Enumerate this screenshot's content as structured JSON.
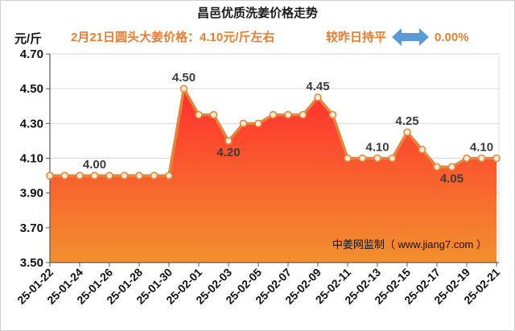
{
  "chart_data": {
    "type": "area",
    "title": "昌邑优质洗姜价格走势",
    "subtitle": "2月21日圆头大姜价格：4.10元/斤左右",
    "change": {
      "text": "较昨日持平",
      "icon": "double-arrow-icon",
      "percent": "0.00%"
    },
    "ylabel": "元/斤",
    "ylim": [
      3.5,
      4.7
    ],
    "yticks": [
      "4.70",
      "4.50",
      "4.30",
      "4.10",
      "3.90",
      "3.70",
      "3.50"
    ],
    "xticks": [
      "25-01-22",
      "25-01-24",
      "25-01-26",
      "25-01-28",
      "25-01-30",
      "25-02-01",
      "25-02-03",
      "25-02-05",
      "25-02-07",
      "25-02-09",
      "25-02-11",
      "25-02-13",
      "25-02-15",
      "25-02-17",
      "25-02-19",
      "25-02-21"
    ],
    "x": [
      "25-01-22",
      "25-01-23",
      "25-01-24",
      "25-01-25",
      "25-01-26",
      "25-01-27",
      "25-01-28",
      "25-01-29",
      "25-01-30",
      "25-01-31",
      "25-02-01",
      "25-02-02",
      "25-02-03",
      "25-02-04",
      "25-02-05",
      "25-02-06",
      "25-02-07",
      "25-02-08",
      "25-02-09",
      "25-02-10",
      "25-02-11",
      "25-02-12",
      "25-02-13",
      "25-02-14",
      "25-02-15",
      "25-02-16",
      "25-02-17",
      "25-02-18",
      "25-02-19",
      "25-02-20",
      "25-02-21"
    ],
    "values": [
      4.0,
      4.0,
      4.0,
      4.0,
      4.0,
      4.0,
      4.0,
      4.0,
      4.0,
      4.5,
      4.35,
      4.35,
      4.2,
      4.3,
      4.3,
      4.35,
      4.35,
      4.35,
      4.45,
      4.35,
      4.1,
      4.1,
      4.1,
      4.1,
      4.25,
      4.15,
      4.05,
      4.05,
      4.1,
      4.1,
      4.1
    ],
    "data_labels": [
      {
        "x": "25-01-25",
        "text": "4.00",
        "position": "above"
      },
      {
        "x": "25-01-31",
        "text": "4.50",
        "position": "above"
      },
      {
        "x": "25-02-03",
        "text": "4.20",
        "position": "below"
      },
      {
        "x": "25-02-09",
        "text": "4.45",
        "position": "above"
      },
      {
        "x": "25-02-13",
        "text": "4.10",
        "position": "above"
      },
      {
        "x": "25-02-15",
        "text": "4.25",
        "position": "above"
      },
      {
        "x": "25-02-18",
        "text": "4.05",
        "position": "below"
      },
      {
        "x": "25-02-20",
        "text": "4.10",
        "position": "above"
      }
    ],
    "markers": true,
    "grid": {
      "horizontal": true,
      "vertical": false
    },
    "watermark": "中姜网监制（ www.jiang7.com ）",
    "colors": {
      "title": "#1A1A1A",
      "subtitle": "#EB7D2E",
      "change_icon": "#5B9BD5",
      "line": "#E0883E",
      "marker_fill": "#FFEBD6",
      "area_top": "#FF2E2E",
      "area_bottom": "#F2902E",
      "data_label": "#3C3C3C",
      "grid": "#D9D9D9",
      "axis": "#595959"
    }
  }
}
